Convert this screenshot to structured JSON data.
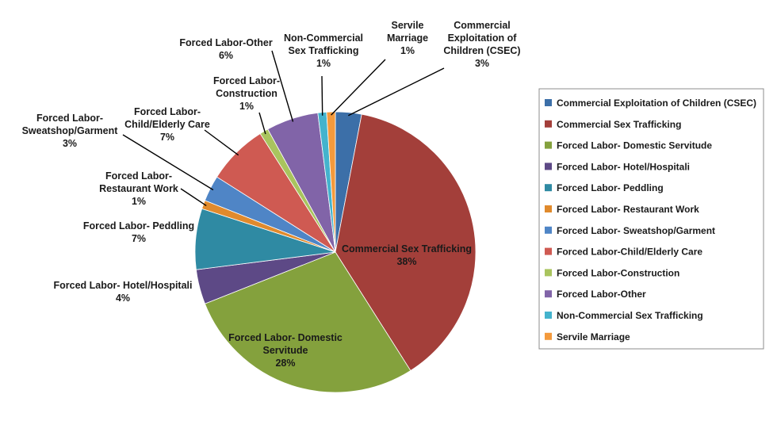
{
  "chart_data": {
    "type": "pie",
    "title": "",
    "legend_position": "right",
    "slices": [
      {
        "name": "Commercial Exploitation of Children (CSEC)",
        "value": 3,
        "color": "#3c6fa8",
        "label_lines": [
          "Commercial",
          "Exploitation of",
          "Children (CSEC)"
        ],
        "pct": "3%"
      },
      {
        "name": "Commercial Sex Trafficking",
        "value": 38,
        "color": "#a33f3a",
        "label_lines": [
          "Commercial Sex Trafficking"
        ],
        "pct": "38%"
      },
      {
        "name": "Forced Labor- Domestic Servitude",
        "value": 28,
        "color": "#84a13d",
        "label_lines": [
          "Forced Labor- Domestic",
          "Servitude"
        ],
        "pct": "28%"
      },
      {
        "name": "Forced Labor- Hotel/Hospitali",
        "value": 4,
        "color": "#5d4986",
        "label_lines": [
          "Forced Labor- Hotel/Hospitali"
        ],
        "pct": "4%"
      },
      {
        "name": "Forced Labor- Peddling",
        "value": 7,
        "color": "#2f8aa3",
        "label_lines": [
          "Forced Labor- Peddling"
        ],
        "pct": "7%"
      },
      {
        "name": "Forced Labor- Restaurant Work",
        "value": 1,
        "color": "#e08a2c",
        "label_lines": [
          "Forced Labor-",
          "Restaurant Work"
        ],
        "pct": "1%"
      },
      {
        "name": "Forced Labor- Sweatshop/Garment",
        "value": 3,
        "color": "#4f85c6",
        "label_lines": [
          "Forced Labor-",
          "Sweatshop/Garment"
        ],
        "pct": "3%"
      },
      {
        "name": "Forced Labor-Child/Elderly Care",
        "value": 7,
        "color": "#cf5a52",
        "label_lines": [
          "Forced Labor-",
          "Child/Elderly Care"
        ],
        "pct": "7%"
      },
      {
        "name": "Forced Labor-Construction",
        "value": 1,
        "color": "#a9c45e",
        "label_lines": [
          "Forced Labor-",
          "Construction"
        ],
        "pct": "1%"
      },
      {
        "name": "Forced Labor-Other",
        "value": 6,
        "color": "#8164a8",
        "label_lines": [
          "Forced Labor-Other"
        ],
        "pct": "6%"
      },
      {
        "name": "Non-Commercial Sex Trafficking",
        "value": 1,
        "color": "#44b3cd",
        "label_lines": [
          "Non-Commercial",
          "Sex Trafficking"
        ],
        "pct": "1%"
      },
      {
        "name": "Servile Marriage",
        "value": 1,
        "color": "#f49a3c",
        "label_lines": [
          "Servile",
          "Marriage"
        ],
        "pct": "1%"
      }
    ]
  }
}
